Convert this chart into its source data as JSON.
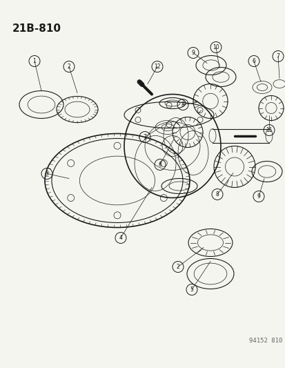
{
  "title": "21B-810",
  "footer": "94152 810",
  "bg_color": "#f5f5f0",
  "line_color": "#1a1a1a",
  "title_fontsize": 11,
  "footer_fontsize": 6.5,
  "fig_width": 4.14,
  "fig_height": 5.33,
  "dpi": 100
}
